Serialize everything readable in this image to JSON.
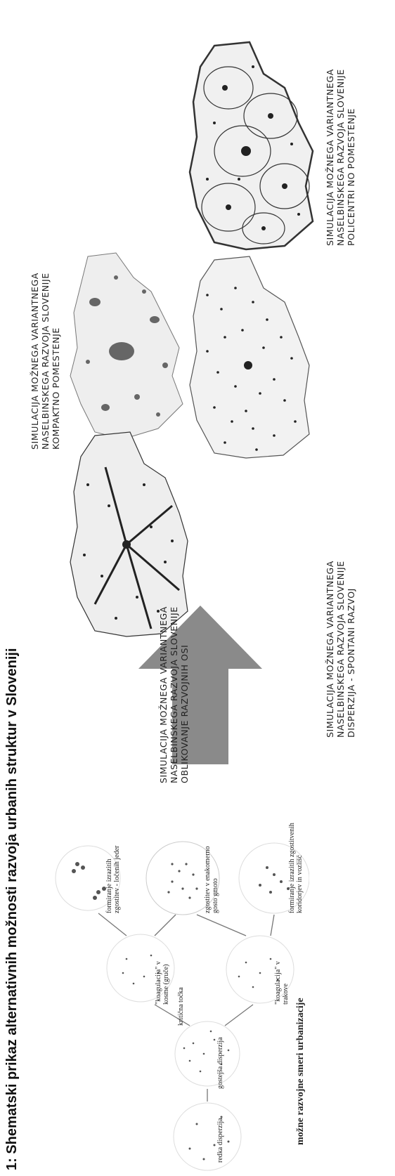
{
  "figure": {
    "title": "1: Shematski prikaz alternativnih možnosti razvoja urbanih struktur v Sloveniji"
  },
  "diagram": {
    "footer": "možne razvojne smeri urbanizacije",
    "stages": [
      {
        "label": "redka disperzija"
      },
      {
        "label": "gostejša disperzija"
      },
      {
        "label": "kritična točka"
      },
      {
        "label": "\"koagulacija\" v kosme (gruče)"
      },
      {
        "label": "\"koagulacija\" v trakove"
      },
      {
        "label": "formiranje izrazitih zgostitev - ločenih jeder"
      },
      {
        "label": "zgostitev v enakomerno gosto gmoto"
      },
      {
        "label": "formiranje izrazitih zgostitvenih koridorjev in vozlišč"
      }
    ]
  },
  "arrow": {
    "color": "#8a8a8a"
  },
  "maps": [
    {
      "caption": [
        "SIMULACIJA MOŽNEGA VARIANTNEGA",
        "NASELBINSKEGA RAZVOJA SLOVENIJE",
        "KOMPAKTNO POMESTENJE"
      ]
    },
    {
      "caption": [
        "SIMULACIJA MOŽNEGA VARIANTNEGA",
        "NASELBINSKEGA RAZVOJA SLOVENIJE",
        "POLICENTRI NO POMESTENJE"
      ]
    },
    {
      "caption": [
        "SIMULACIJA MOŽNEGA VARIANTNEGA",
        "NASELBINSKEGA RAZVOJA SLOVENIJE",
        "OBLIKOVANJE RAZVOJNIH OSI"
      ]
    },
    {
      "caption": [
        "SIMULACIJA MOŽNEGA VARIANTNEGA",
        "NASELBINSKEGA RAZVOJA SLOVENIJE",
        "DISPERZIJA - SPONTANI RAZVOJ"
      ]
    }
  ]
}
